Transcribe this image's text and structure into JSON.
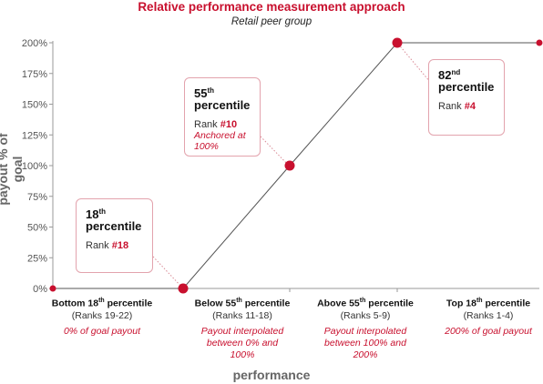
{
  "title": "Relative performance measurement approach",
  "subtitle": "Retail peer group",
  "chart_data": {
    "type": "line",
    "ylabel": "payout % of goal",
    "xlabel": "performance",
    "ylim": [
      0,
      200
    ],
    "yticks": [
      "0%",
      "25%",
      "50%",
      "75%",
      "100%",
      "125%",
      "150%",
      "175%",
      "200%"
    ],
    "series": [
      {
        "values": [
          {
            "x": "Bottom 18th percentile",
            "y": 0
          },
          {
            "x": "18th percentile",
            "y": 0
          },
          {
            "x": "55th percentile",
            "y": 100
          },
          {
            "x": "82nd percentile",
            "y": 200
          },
          {
            "x": "Top 18th percentile",
            "y": 200
          }
        ]
      }
    ],
    "categories": [
      {
        "name": "Bottom 18",
        "sup": "th",
        "name_end": " percentile",
        "ranks": "(Ranks 19-22)",
        "note": "0% of goal payout"
      },
      {
        "name": "Below 55",
        "sup": "th",
        "name_end": " percentile",
        "ranks": "(Ranks 11-18)",
        "note": "Payout interpolated between 0% and 100%"
      },
      {
        "name": "Above 55",
        "sup": "th",
        "name_end": " percentile",
        "ranks": "(Ranks 5-9)",
        "note": "Payout interpolated between 100% and 200%"
      },
      {
        "name": "Top 18",
        "sup": "th",
        "name_end": " percentile",
        "ranks": "(Ranks 1-4)",
        "note": "200% of goal payout"
      }
    ],
    "callouts": [
      {
        "num": "18",
        "sup": "th",
        "word": "percentile",
        "rank_label": "Rank",
        "rank": "#18",
        "note": ""
      },
      {
        "num": "55",
        "sup": "th",
        "word": "percentile",
        "rank_label": "Rank",
        "rank": "#10",
        "note": "Anchored at 100%"
      },
      {
        "num": "82",
        "sup": "nd",
        "word": "percentile",
        "rank_label": "Rank",
        "rank": "#4",
        "note": ""
      }
    ],
    "colors": {
      "line": "#555555",
      "point": "#c8102e",
      "accent": "#c8102e",
      "axis": "#999999"
    }
  }
}
